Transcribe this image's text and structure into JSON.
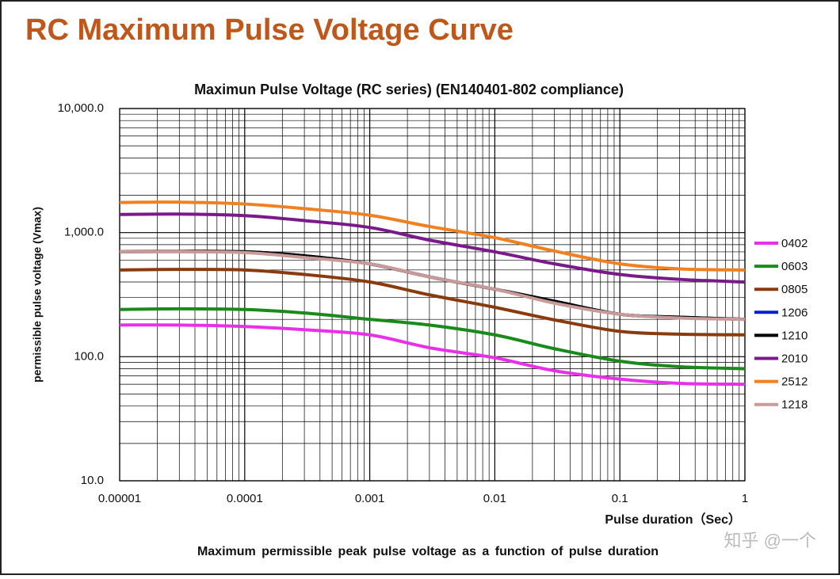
{
  "slide_title": "RC Maximum Pulse Voltage Curve",
  "watermark": "知乎 @一个",
  "chart_data": {
    "type": "line",
    "title": "Maximun Pulse Voltage (RC series) (EN140401-802 compliance)",
    "x_label": "Pulse duration（Sec）",
    "y_label": "permissible pulse voltage (Vmax)",
    "caption": "Maximum permissible peak pulse voltage as a function of pulse duration",
    "x_log": true,
    "y_log": true,
    "grid": true,
    "minor_grid": true,
    "legend": "right",
    "xlim": [
      1e-05,
      1
    ],
    "ylim": [
      10,
      10000
    ],
    "xticks": [
      1e-05,
      0.0001,
      0.001,
      0.01,
      0.1,
      1
    ],
    "yticks": [
      {
        "value": 10,
        "label": "10.0"
      },
      {
        "value": 100,
        "label": "100.0"
      },
      {
        "value": 1000,
        "label": "1,000.0"
      },
      {
        "value": 10000,
        "label": "10,000.0"
      }
    ],
    "x": [
      1e-05,
      3e-05,
      0.0001,
      0.0003,
      0.001,
      0.003,
      0.01,
      0.03,
      0.1,
      0.3,
      1
    ],
    "series": [
      {
        "name": "0402",
        "color": "#e830e8",
        "values": [
          180,
          180,
          175,
          165,
          150,
          118,
          98,
          77,
          66,
          61,
          60
        ]
      },
      {
        "name": "0603",
        "color": "#1a8a1a",
        "values": [
          240,
          243,
          240,
          225,
          200,
          180,
          150,
          116,
          92,
          83,
          80
        ]
      },
      {
        "name": "0805",
        "color": "#8b3a0e",
        "values": [
          500,
          505,
          500,
          460,
          400,
          315,
          250,
          198,
          160,
          152,
          150
        ]
      },
      {
        "name": "1206",
        "color": "#0020cc",
        "values": [
          700,
          705,
          700,
          650,
          560,
          440,
          350,
          280,
          220,
          208,
          200
        ]
      },
      {
        "name": "1210",
        "color": "#000000",
        "values": [
          700,
          705,
          700,
          650,
          560,
          440,
          350,
          280,
          220,
          208,
          200
        ]
      },
      {
        "name": "2010",
        "color": "#7a1a8a",
        "values": [
          1400,
          1410,
          1370,
          1250,
          1100,
          870,
          700,
          560,
          460,
          420,
          400
        ]
      },
      {
        "name": "2512",
        "color": "#f08020",
        "values": [
          1750,
          1760,
          1700,
          1560,
          1380,
          1120,
          910,
          710,
          560,
          510,
          500
        ]
      },
      {
        "name": "1218",
        "color": "#c89a98",
        "values": [
          700,
          700,
          690,
          630,
          560,
          440,
          350,
          270,
          220,
          205,
          200
        ]
      }
    ]
  }
}
